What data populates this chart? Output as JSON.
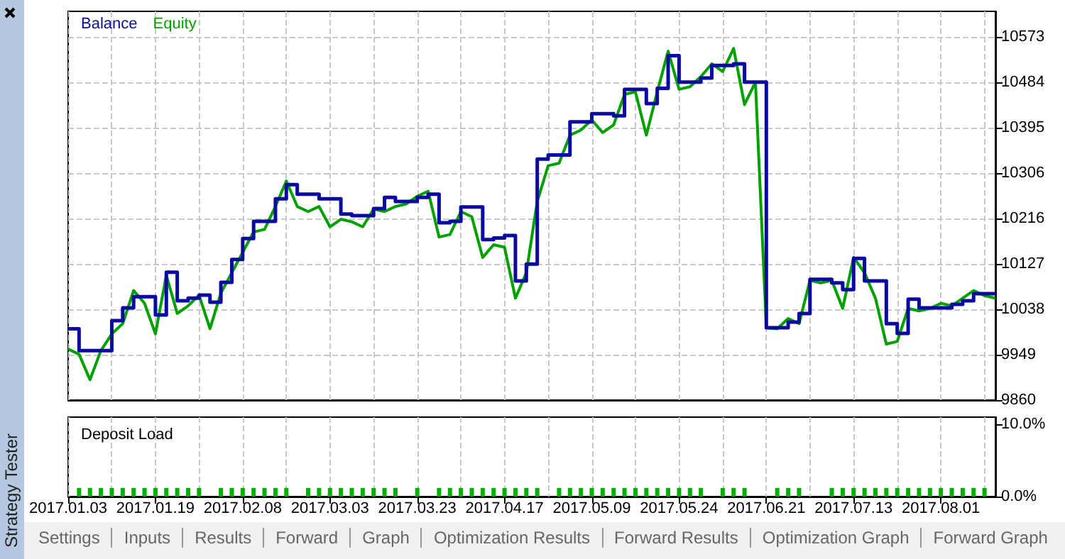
{
  "chart_data": [
    {
      "type": "line",
      "legend": "top left",
      "grid": true,
      "tick_labels": "y",
      "line_style": "solid",
      "categories": [
        "2017.01.03",
        null,
        null,
        null,
        null,
        null,
        null,
        null,
        "2017.01.19",
        null,
        null,
        null,
        null,
        null,
        null,
        null,
        "2017.02.08",
        null,
        null,
        null,
        null,
        null,
        null,
        null,
        "2017.03.03",
        null,
        null,
        null,
        null,
        null,
        null,
        null,
        "2017.03.23",
        null,
        null,
        null,
        null,
        null,
        null,
        null,
        "2017.04.17",
        null,
        null,
        null,
        null,
        null,
        null,
        null,
        "2017.05.09",
        null,
        null,
        null,
        null,
        null,
        null,
        null,
        "2017.05.24",
        null,
        null,
        null,
        null,
        null,
        null,
        null,
        "2017.06.21",
        null,
        null,
        null,
        null,
        null,
        null,
        null,
        "2017.07.13",
        null,
        null,
        null,
        null,
        null,
        null,
        null,
        "2017.08.01",
        null,
        null,
        null,
        null,
        null
      ],
      "ylim": [
        9860,
        10623
      ],
      "yticks": [
        9860,
        9949,
        10038,
        10127,
        10216,
        10306,
        10395,
        10484,
        10573
      ],
      "series": [
        {
          "name": "Balance",
          "type": "step",
          "color": "#0a0aa0",
          "values": [
            10000,
            9957,
            9957,
            9957,
            10016,
            10041,
            10063,
            10063,
            10027,
            10111,
            10055,
            10060,
            10066,
            10052,
            10091,
            10136,
            10177,
            10211,
            10211,
            10255,
            10283,
            10264,
            10264,
            10255,
            10255,
            10225,
            10222,
            10222,
            10236,
            10258,
            10250,
            10250,
            10258,
            10264,
            10208,
            10211,
            10239,
            10239,
            10175,
            10178,
            10183,
            10094,
            10127,
            10333,
            10341,
            10341,
            10406,
            10406,
            10422,
            10422,
            10418,
            10470,
            10470,
            10442,
            10472,
            10536,
            10484,
            10484,
            10492,
            10517,
            10517,
            10520,
            10484,
            10484,
            10002,
            10002,
            10013,
            10030,
            10097,
            10097,
            10090,
            10077,
            10138,
            10094,
            10094,
            10010,
            9991,
            10058,
            10041,
            10041,
            10041,
            10048,
            10055,
            10069,
            10069,
            10069
          ]
        },
        {
          "name": "Equity",
          "type": "line",
          "color": "#00a000",
          "values": [
            9960,
            9950,
            9900,
            9957,
            9990,
            10010,
            10075,
            10050,
            9990,
            10105,
            10030,
            10045,
            10066,
            10000,
            10070,
            10110,
            10150,
            10190,
            10195,
            10240,
            10290,
            10240,
            10230,
            10240,
            10200,
            10215,
            10210,
            10200,
            10235,
            10230,
            10240,
            10245,
            10260,
            10270,
            10180,
            10185,
            10230,
            10220,
            10140,
            10165,
            10160,
            10060,
            10110,
            10250,
            10320,
            10325,
            10380,
            10390,
            10410,
            10385,
            10400,
            10460,
            10465,
            10380,
            10465,
            10545,
            10470,
            10475,
            10495,
            10520,
            10505,
            10550,
            10440,
            10484,
            10002,
            10000,
            10020,
            10010,
            10095,
            10090,
            10095,
            10040,
            10140,
            10110,
            10060,
            9970,
            9975,
            10040,
            10035,
            10040,
            10050,
            10045,
            10060,
            10075,
            10065,
            10060
          ]
        }
      ]
    },
    {
      "type": "bar",
      "title": "Deposit Load",
      "grid": "x",
      "color": "#00b000",
      "categories": [
        "2017.01.03",
        null,
        null,
        null,
        null,
        null,
        null,
        null,
        "2017.01.19",
        null,
        null,
        null,
        null,
        null,
        null,
        null,
        "2017.02.08",
        null,
        null,
        null,
        null,
        null,
        null,
        null,
        "2017.03.03",
        null,
        null,
        null,
        null,
        null,
        null,
        null,
        "2017.03.23",
        null,
        null,
        null,
        null,
        null,
        null,
        null,
        "2017.04.17",
        null,
        null,
        null,
        null,
        null,
        null,
        null,
        "2017.05.09",
        null,
        null,
        null,
        null,
        null,
        null,
        null,
        "2017.05.24",
        null,
        null,
        null,
        null,
        null,
        null,
        null,
        "2017.06.21",
        null,
        null,
        null,
        null,
        null,
        null,
        null,
        "2017.07.13",
        null,
        null,
        null,
        null,
        null,
        null,
        null,
        "2017.08.01",
        null,
        null,
        null,
        null,
        null
      ],
      "ylim": [
        0,
        11
      ],
      "yticks": [
        {
          "value": 0,
          "label": "0.0%"
        },
        {
          "value": 10,
          "label": "10.0%"
        }
      ],
      "values": [
        null,
        1.2,
        1.2,
        1.2,
        1.2,
        1.2,
        1.2,
        1.2,
        1.2,
        1.2,
        1.2,
        1.2,
        1.2,
        null,
        1.2,
        1.2,
        1.2,
        1.2,
        1.2,
        1.2,
        1.2,
        null,
        1.2,
        1.2,
        1.2,
        1.2,
        1.2,
        1.2,
        1.2,
        1.2,
        1.2,
        null,
        1.2,
        null,
        1.2,
        1.2,
        1.2,
        1.2,
        1.2,
        1.2,
        1.2,
        1.2,
        1.2,
        1.2,
        null,
        1.2,
        1.2,
        1.2,
        1.2,
        1.2,
        1.2,
        1.2,
        1.2,
        1.2,
        1.2,
        1.2,
        1.2,
        1.2,
        1.2,
        null,
        1.2,
        1.2,
        1.2,
        null,
        null,
        1.2,
        1.2,
        1.2,
        null,
        null,
        1.2,
        1.2,
        1.2,
        1.2,
        1.2,
        1.2,
        1.2,
        1.2,
        1.2,
        1.2,
        1.2,
        1.2,
        1.2,
        1.2,
        1.2,
        null
      ],
      "annotations": [
        "Strategy Tester",
        "Settings",
        "Inputs",
        "Results",
        "Forward",
        "Graph",
        "Optimization Results",
        "Forward Results",
        "Optimization Graph",
        "Forward Graph"
      ]
    }
  ]
}
